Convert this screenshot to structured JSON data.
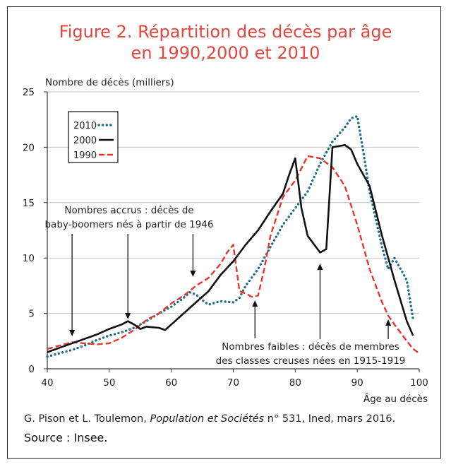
{
  "figure": {
    "title_line1": "Figure 2. Répartition des décès par âge",
    "title_line2": "en 1990,2000 et 2010",
    "credit_authors": "G. Pison et L. Toulemon, ",
    "credit_journal": "Population et Sociétés",
    "credit_rest": " n° 531, Ined, mars 2016.",
    "source": "Source : Insee."
  },
  "chart_data": {
    "type": "line",
    "ylabel": "Nombre de décès (milliers)",
    "xlabel": "Âge au décès",
    "xlim": [
      40,
      100
    ],
    "ylim": [
      0,
      25
    ],
    "x_ticks": [
      40,
      50,
      60,
      70,
      80,
      90,
      100
    ],
    "y_ticks": [
      0,
      5,
      10,
      15,
      20,
      25
    ],
    "grid": "horizontal",
    "legend_position": "top-left",
    "series": [
      {
        "name": "2010",
        "color": "#1f6f8b",
        "style": "dotted",
        "x": [
          40,
          42,
          44,
          46,
          48,
          50,
          52,
          54,
          56,
          58,
          60,
          62,
          63,
          64,
          65,
          66,
          68,
          70,
          71,
          72,
          74,
          76,
          78,
          80,
          82,
          84,
          86,
          88,
          89,
          90,
          91,
          92,
          94,
          95,
          96,
          98,
          99
        ],
        "y": [
          1.1,
          1.4,
          1.7,
          2.1,
          2.6,
          3.0,
          3.3,
          3.7,
          4.3,
          5.0,
          5.6,
          6.4,
          6.9,
          6.7,
          6.2,
          5.8,
          6.1,
          6.0,
          6.4,
          7.5,
          9.0,
          11.0,
          13.0,
          14.5,
          16.0,
          18.5,
          20.5,
          21.8,
          22.6,
          22.8,
          19.5,
          16.0,
          11.0,
          9.0,
          10.0,
          8.0,
          4.5
        ]
      },
      {
        "name": "2000",
        "color": "#111111",
        "style": "solid",
        "x": [
          40,
          42,
          44,
          46,
          48,
          50,
          52,
          53,
          54,
          55,
          56,
          58,
          59,
          60,
          62,
          64,
          66,
          68,
          70,
          72,
          74,
          76,
          78,
          79,
          80,
          81,
          82,
          84,
          85,
          86,
          88,
          89,
          90,
          92,
          94,
          96,
          98,
          99
        ],
        "y": [
          1.5,
          1.9,
          2.3,
          2.7,
          3.1,
          3.6,
          4.0,
          4.3,
          4.0,
          3.6,
          3.8,
          3.7,
          3.5,
          4.0,
          5.0,
          6.0,
          7.0,
          8.5,
          9.7,
          11.2,
          12.5,
          14.2,
          15.8,
          17.5,
          19.0,
          14.5,
          12.0,
          10.5,
          10.8,
          20.0,
          20.2,
          19.8,
          18.5,
          16.5,
          12.0,
          8.0,
          4.3,
          3.0
        ]
      },
      {
        "name": "1990",
        "color": "#e8352b",
        "style": "dashed",
        "x": [
          40,
          42,
          44,
          46,
          48,
          50,
          52,
          54,
          56,
          58,
          60,
          62,
          64,
          66,
          68,
          69,
          70,
          71,
          72,
          73,
          74,
          75,
          76,
          78,
          80,
          82,
          84,
          86,
          88,
          90,
          92,
          94,
          95,
          96,
          98,
          99,
          100
        ],
        "y": [
          1.8,
          2.1,
          2.4,
          2.3,
          2.2,
          2.3,
          2.8,
          3.5,
          4.4,
          5.0,
          5.9,
          6.6,
          7.5,
          8.2,
          9.5,
          10.5,
          11.2,
          7.0,
          6.8,
          6.5,
          6.6,
          9.0,
          12.0,
          15.5,
          17.0,
          19.2,
          19.0,
          18.2,
          16.5,
          13.0,
          9.0,
          6.0,
          4.8,
          4.0,
          2.5,
          1.8,
          1.4
        ]
      }
    ],
    "annotations": [
      {
        "lines": [
          "Nombres accrus : décès de",
          "baby-boomers nés à partir de 1946"
        ],
        "arrow_ages": [
          44,
          53,
          63.5
        ]
      },
      {
        "lines": [
          "Nombres faibles : décès de membres",
          "des classes creuses nées en 1915-1919"
        ],
        "arrow_ages": [
          73.5,
          84,
          95
        ]
      }
    ]
  }
}
